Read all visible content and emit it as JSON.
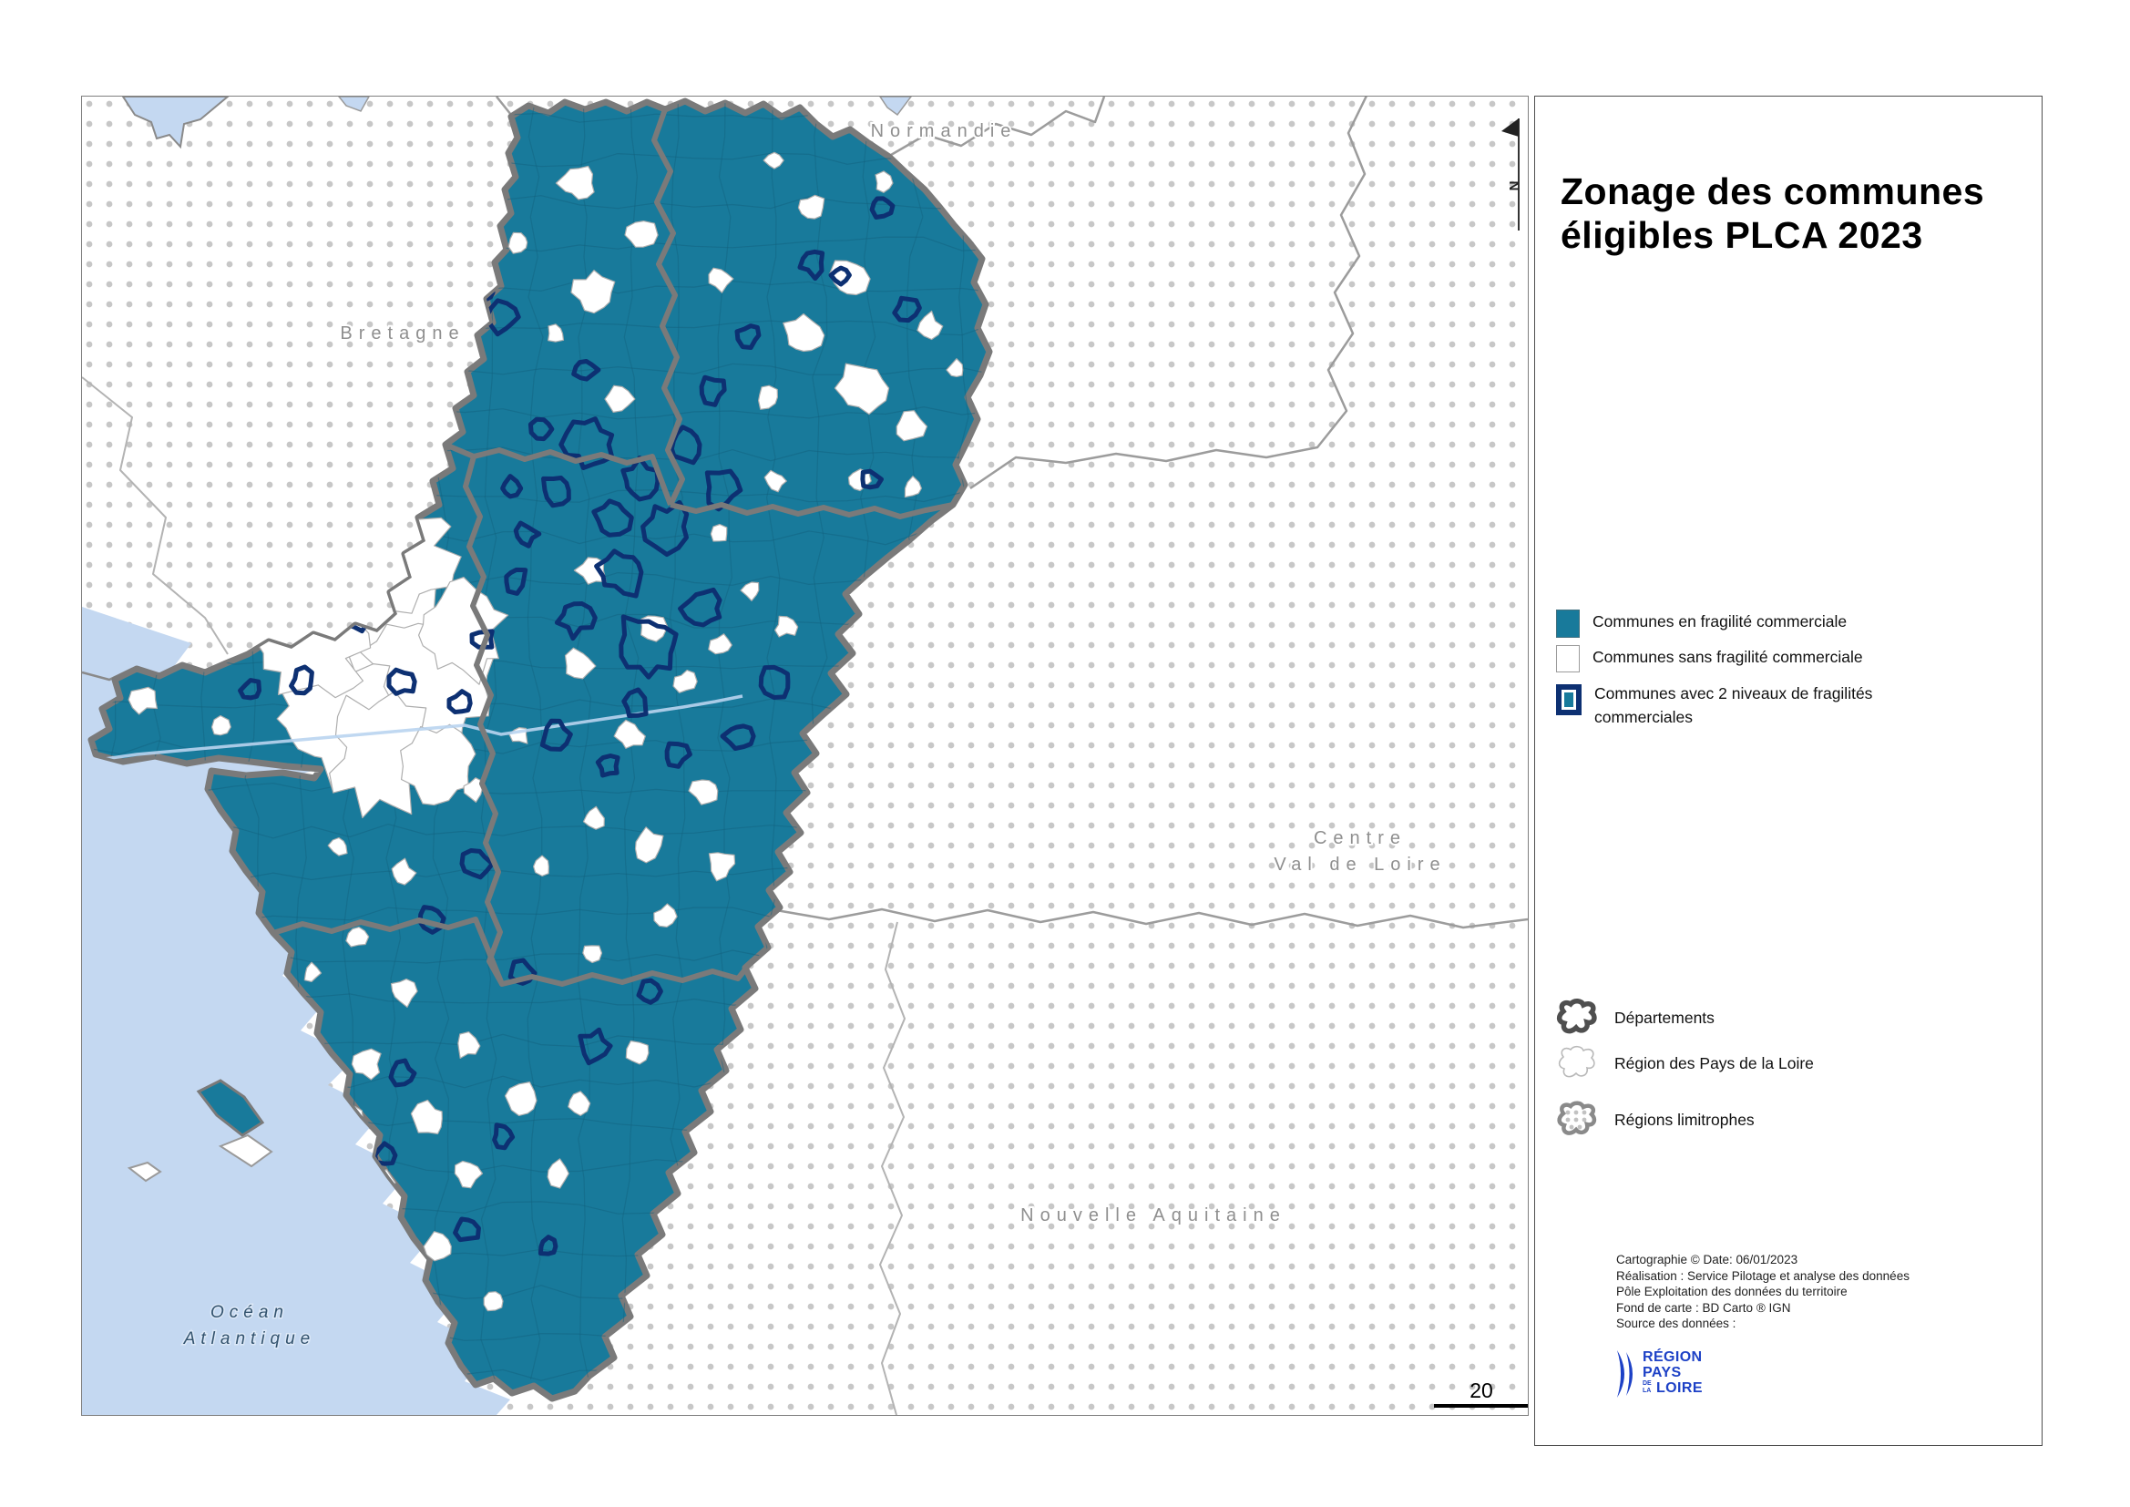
{
  "title": {
    "line1": "Zonage des communes",
    "line2": "éligibles PLCA 2023"
  },
  "map": {
    "region_labels": {
      "normandie": "Normandie",
      "bretagne": "Bretagne",
      "centre_line1": "Centre",
      "centre_line2": "Val de Loire",
      "nouvelle_aquitaine": "Nouvelle Aquitaine",
      "ocean_line1": "Océan",
      "ocean_line2": "Atlantique"
    },
    "scale_label": "20",
    "north_label": "N"
  },
  "legend": {
    "communes": [
      {
        "label": "Communes en fragilité commerciale",
        "swatch": "teal-fill"
      },
      {
        "label": "Communes sans fragilité commerciale",
        "swatch": "white-fill"
      },
      {
        "label": "Communes avec 2 niveaux de fragilités commerciales",
        "swatch": "teal-fill-navy-outline"
      }
    ],
    "boundaries": [
      {
        "label": "Départements",
        "icon": "thick-gray-outline-blob"
      },
      {
        "label": "Région des Pays de la Loire",
        "icon": "thin-gray-outline-blob"
      },
      {
        "label": "Régions limitrophes",
        "icon": "gray-outline-dotted-blob"
      }
    ]
  },
  "credits": {
    "lines": [
      "Cartographie © Date: 06/01/2023",
      "Réalisation : Service Pilotage et analyse des données",
      "Pôle Exploitation des données du territoire",
      "Fond de carte : BD Carto ® IGN",
      "Source des données :"
    ]
  },
  "logo": {
    "region": "RÉGION",
    "pays": "PAYS",
    "de": "DE",
    "la": "LA",
    "loire": "LOIRE"
  },
  "colors": {
    "teal_commune": "#187a9b",
    "navy_outline": "#0d3072",
    "department_gray": "#7a7a7a",
    "ocean_blue": "#c4d8f1",
    "dots_gray": "#c7c7c7",
    "logo_blue": "#1d41c6"
  }
}
